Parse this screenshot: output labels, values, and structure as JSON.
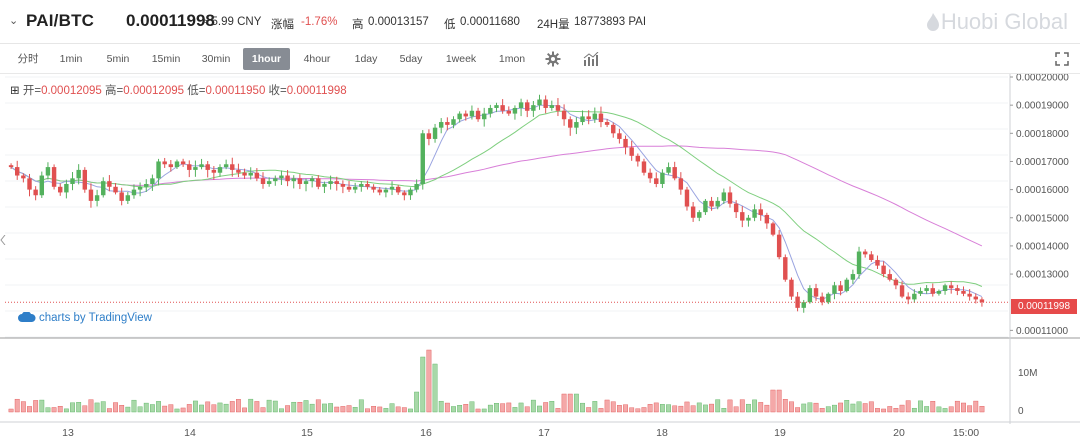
{
  "header": {
    "pair": "PAI/BTC",
    "price": "0.00011998",
    "cny": "≈ 5.99 CNY",
    "change_label": "涨幅",
    "change_value": "-1.76%",
    "high_label": "高",
    "high_value": "0.00013157",
    "low_label": "低",
    "low_value": "0.00011680",
    "vol_label": "24H量",
    "vol_value": "18773893 PAI",
    "logo": "Huobi Global"
  },
  "toolbar": {
    "intervals": [
      "分时",
      "1min",
      "5min",
      "15min",
      "30min",
      "1hour",
      "4hour",
      "1day",
      "5day",
      "1week",
      "1mon"
    ],
    "active": "1hour"
  },
  "legend": {
    "open_label": "开=",
    "open": "0.00012095",
    "high_label": "高=",
    "high": "0.00012095",
    "low_label": "低=",
    "low": "0.00011950",
    "close_label": "收=",
    "close": "0.00011998"
  },
  "tradingview": "charts by TradingView",
  "last_price_tag": "0.00011998",
  "colors": {
    "up": "#53b15d",
    "down": "#e05050",
    "ma1": "#9aa4e0",
    "ma2": "#7fcf7f",
    "ma3": "#d87fd8"
  },
  "chart_data": {
    "type": "candlestick",
    "price_axis": {
      "ticks": [
        "0.00020000",
        "0.00019000",
        "0.00018000",
        "0.00017000",
        "0.00016000",
        "0.00015000",
        "0.00014000",
        "0.00013000",
        "0.00011000"
      ],
      "range": [
        0.000108,
        0.0002
      ]
    },
    "volume_axis": {
      "ticks": [
        "10M",
        "0"
      ]
    },
    "x_axis": {
      "ticks": [
        "13",
        "14",
        "15",
        "16",
        "17",
        "18",
        "19",
        "20",
        "15:00"
      ]
    },
    "candles_close": [
      0.000168,
      0.000165,
      0.000164,
      0.00016,
      0.000158,
      0.000165,
      0.000168,
      0.000161,
      0.000159,
      0.000162,
      0.000164,
      0.000167,
      0.00016,
      0.000156,
      0.000158,
      0.000163,
      0.000161,
      0.000159,
      0.000156,
      0.000158,
      0.00016,
      0.000161,
      0.000162,
      0.000164,
      0.00017,
      0.000169,
      0.000168,
      0.00017,
      0.000169,
      0.000167,
      0.000168,
      0.000169,
      0.000167,
      0.000166,
      0.000168,
      0.000169,
      0.000167,
      0.000166,
      0.000165,
      0.000166,
      0.000164,
      0.000162,
      0.000163,
      0.000164,
      0.000165,
      0.000163,
      0.000164,
      0.000162,
      0.000163,
      0.000164,
      0.000161,
      0.000162,
      0.000163,
      0.000162,
      0.000161,
      0.00016,
      0.000161,
      0.000162,
      0.000161,
      0.00016,
      0.000159,
      0.00016,
      0.000161,
      0.000159,
      0.000158,
      0.00016,
      0.000162,
      0.00018,
      0.000178,
      0.000182,
      0.000184,
      0.000183,
      0.000185,
      0.000187,
      0.000186,
      0.000188,
      0.000185,
      0.000187,
      0.000189,
      0.00019,
      0.000188,
      0.000187,
      0.000189,
      0.000191,
      0.000188,
      0.00019,
      0.000192,
      0.000189,
      0.00019,
      0.000188,
      0.000185,
      0.000182,
      0.000184,
      0.000186,
      0.000185,
      0.000187,
      0.000184,
      0.000183,
      0.00018,
      0.000178,
      0.000175,
      0.000172,
      0.00017,
      0.000166,
      0.000164,
      0.000162,
      0.000166,
      0.000168,
      0.000164,
      0.00016,
      0.000154,
      0.00015,
      0.000152,
      0.000156,
      0.000154,
      0.000156,
      0.000159,
      0.000155,
      0.000152,
      0.000149,
      0.00015,
      0.000153,
      0.000151,
      0.000148,
      0.000144,
      0.000136,
      0.000128,
      0.000122,
      0.000118,
      0.00012,
      0.000125,
      0.000122,
      0.00012,
      0.000123,
      0.000126,
      0.000124,
      0.000128,
      0.00013,
      0.000138,
      0.000137,
      0.000135,
      0.000133,
      0.00013,
      0.000128,
      0.000126,
      0.000122,
      0.000121,
      0.000123,
      0.000124,
      0.000125,
      0.000123,
      0.000124,
      0.000126,
      0.000125,
      0.000124,
      0.000123,
      0.000122,
      0.000121,
      0.00012
    ]
  }
}
